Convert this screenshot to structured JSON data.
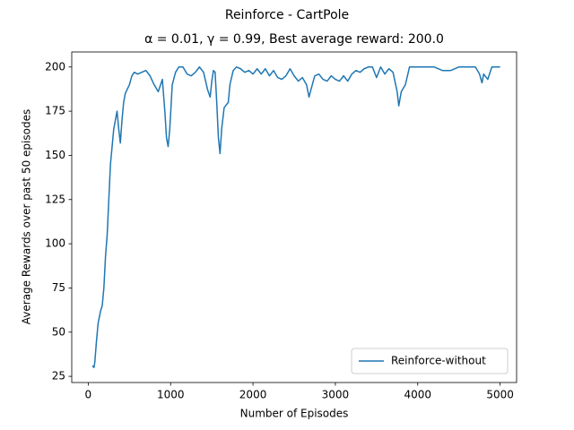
{
  "chart_data": {
    "type": "line",
    "title": "Reinforce - CartPole",
    "subtitle": "α = 0.01, γ = 0.99,  Best average reward: 200.0",
    "xlabel": "Number of Episodes",
    "ylabel": "Average Rewards over past 50 episodes",
    "x": [
      50,
      70,
      80,
      100,
      120,
      150,
      170,
      190,
      210,
      230,
      250,
      270,
      290,
      310,
      330,
      350,
      370,
      390,
      410,
      430,
      450,
      480,
      500,
      530,
      560,
      600,
      650,
      700,
      750,
      800,
      850,
      900,
      930,
      950,
      970,
      990,
      1020,
      1060,
      1100,
      1150,
      1200,
      1250,
      1300,
      1350,
      1400,
      1450,
      1480,
      1500,
      1520,
      1540,
      1560,
      1580,
      1600,
      1620,
      1650,
      1700,
      1720,
      1760,
      1800,
      1850,
      1900,
      1950,
      2000,
      2050,
      2100,
      2150,
      2200,
      2250,
      2300,
      2350,
      2400,
      2450,
      2500,
      2550,
      2600,
      2650,
      2680,
      2720,
      2750,
      2800,
      2850,
      2900,
      2950,
      3000,
      3050,
      3100,
      3150,
      3200,
      3250,
      3300,
      3350,
      3400,
      3450,
      3500,
      3550,
      3600,
      3650,
      3700,
      3750,
      3770,
      3800,
      3850,
      3900,
      4000,
      4100,
      4200,
      4300,
      4400,
      4500,
      4600,
      4700,
      4750,
      4780,
      4800,
      4850,
      4900,
      5000
    ],
    "series": [
      {
        "name": "Reinforce-without",
        "color": "#1f77b4",
        "values": [
          31,
          30,
          33,
          45,
          55,
          62,
          65,
          75,
          93,
          105,
          125,
          145,
          155,
          165,
          170,
          175,
          165,
          157,
          170,
          180,
          185,
          188,
          190,
          195,
          197,
          196,
          197,
          198,
          195,
          190,
          186,
          193,
          175,
          160,
          155,
          165,
          190,
          197,
          200,
          200,
          196,
          195,
          197,
          200,
          197,
          187,
          183,
          192,
          198,
          197,
          180,
          160,
          151,
          165,
          177,
          180,
          190,
          198,
          200,
          199,
          197,
          198,
          196,
          199,
          196,
          199,
          195,
          198,
          194,
          193,
          195,
          199,
          195,
          192,
          194,
          190,
          183,
          190,
          195,
          196,
          193,
          192,
          195,
          193,
          192,
          195,
          192,
          196,
          198,
          197,
          199,
          200,
          200,
          194,
          200,
          196,
          199,
          197,
          186,
          178,
          186,
          190,
          200,
          200,
          200,
          200,
          198,
          198,
          200,
          200,
          200,
          196,
          191,
          196,
          193,
          200,
          200
        ]
      }
    ],
    "xlim": [
      -200,
      5200
    ],
    "ylim": [
      21.5,
      208.5
    ],
    "xticks": [
      0,
      1000,
      2000,
      3000,
      4000,
      5000
    ],
    "yticks": [
      25,
      50,
      75,
      100,
      125,
      150,
      175,
      200
    ],
    "legend": "lower right"
  }
}
